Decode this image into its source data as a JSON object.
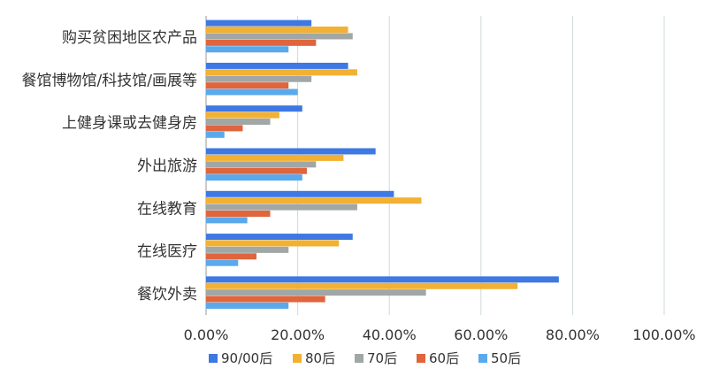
{
  "chart_data": {
    "type": "bar",
    "orientation": "horizontal",
    "title": "",
    "xlabel": "",
    "ylabel": "",
    "categories": [
      "购买贫困地区农产品",
      "餐馆博物馆/科技馆/画展等",
      "上健身课或去健身房",
      "外出旅游",
      "在线教育",
      "在线医疗",
      "餐饮外卖"
    ],
    "xlim": [
      0,
      100
    ],
    "x_ticks": [
      0,
      20,
      40,
      60,
      80,
      100
    ],
    "x_tick_labels": [
      "0.00%",
      "20.00%",
      "40.00%",
      "60.00%",
      "80.00%",
      "100.00%"
    ],
    "grid": "vertical",
    "legend_position": "bottom",
    "series": [
      {
        "name": "90/00后",
        "color": "#3D78E3",
        "values": [
          23,
          31,
          21,
          37,
          41,
          32,
          77
        ]
      },
      {
        "name": "80后",
        "color": "#F2B132",
        "values": [
          31,
          33,
          16,
          30,
          47,
          29,
          68
        ]
      },
      {
        "name": "70后",
        "color": "#A0A7A6",
        "values": [
          32,
          23,
          14,
          24,
          33,
          18,
          48
        ]
      },
      {
        "name": "60后",
        "color": "#E0643C",
        "values": [
          24,
          18,
          8,
          22,
          14,
          11,
          26
        ]
      },
      {
        "name": "50后",
        "color": "#5AA9EC",
        "values": [
          18,
          20,
          4,
          21,
          9,
          7,
          18
        ]
      }
    ]
  }
}
